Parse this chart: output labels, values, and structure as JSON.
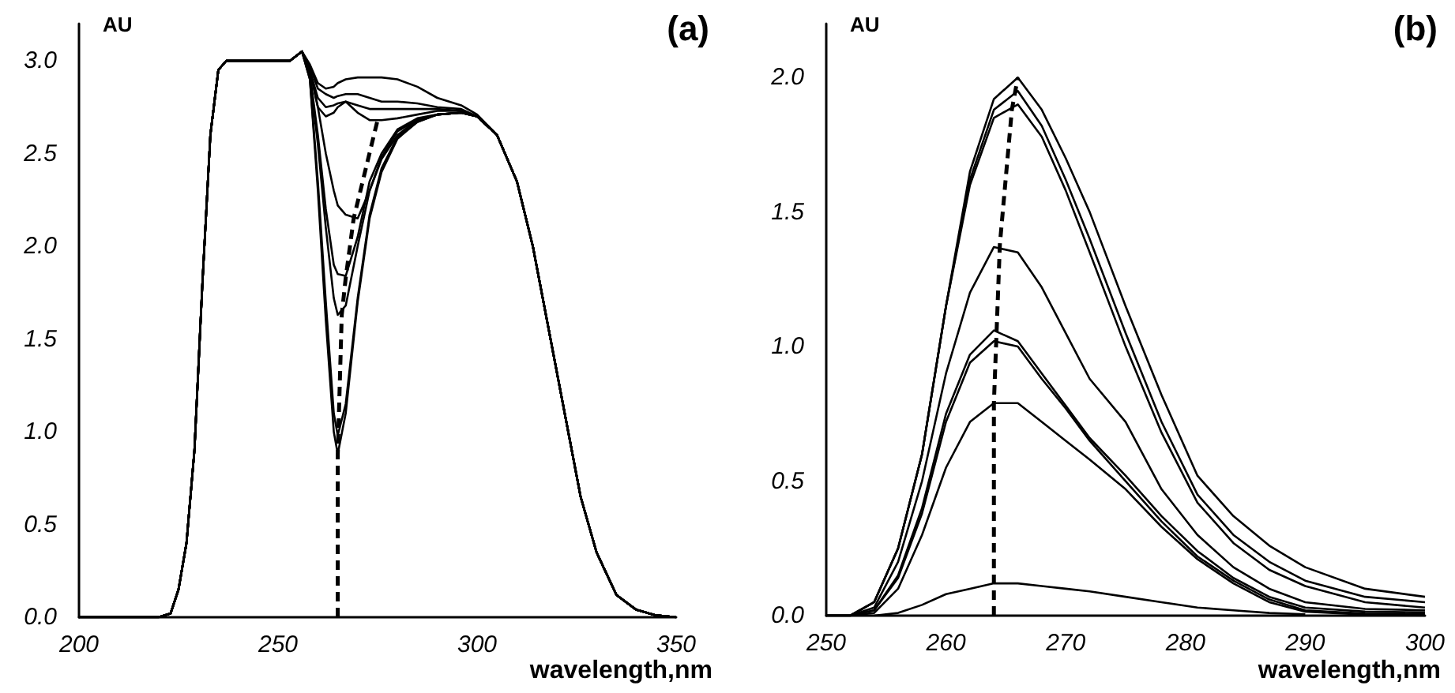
{
  "chart_data": [
    {
      "type": "line",
      "title": "(a)",
      "xlabel": "wavelength,nm",
      "ylabel": "AU",
      "xlim": [
        200,
        350
      ],
      "ylim": [
        0,
        3.2
      ],
      "xticks": [
        200,
        250,
        300,
        350
      ],
      "yticks": [
        {
          "value": 0,
          "label": "0.0"
        },
        0.5,
        {
          "value": 1,
          "label": "1.0"
        },
        1.5,
        {
          "value": 2,
          "label": "2.0"
        },
        2.5,
        {
          "value": 3,
          "label": "3.0"
        }
      ],
      "grid": false,
      "marker": "none",
      "line_style": "solid",
      "x": [
        200,
        215,
        220,
        223,
        225,
        227,
        229,
        231,
        233,
        235,
        237,
        240,
        253,
        256,
        258,
        260,
        262,
        264,
        265,
        267,
        270,
        273,
        276,
        280,
        285,
        290,
        296,
        300,
        305,
        310,
        314,
        318,
        322,
        326,
        330,
        335,
        340,
        345,
        350
      ],
      "series": [
        {
          "color": "#000000",
          "values": [
            0,
            0,
            0,
            0.02,
            0.15,
            0.4,
            0.9,
            1.8,
            2.6,
            2.95,
            3.0,
            3.0,
            3.0,
            3.05,
            2.9,
            2.3,
            1.6,
            1.0,
            0.88,
            1.1,
            1.7,
            2.15,
            2.4,
            2.58,
            2.67,
            2.71,
            2.72,
            2.7,
            2.6,
            2.35,
            2.0,
            1.55,
            1.1,
            0.65,
            0.35,
            0.12,
            0.04,
            0.01,
            0
          ]
        },
        {
          "color": "#000000",
          "values": [
            0,
            0,
            0,
            0.02,
            0.15,
            0.4,
            0.9,
            1.8,
            2.6,
            2.95,
            3.0,
            3.0,
            3.0,
            3.05,
            2.9,
            2.35,
            1.7,
            1.1,
            0.98,
            1.15,
            1.72,
            2.17,
            2.42,
            2.59,
            2.67,
            2.71,
            2.72,
            2.7,
            2.6,
            2.35,
            2.0,
            1.55,
            1.1,
            0.65,
            0.35,
            0.12,
            0.04,
            0.01,
            0
          ]
        },
        {
          "color": "#000000",
          "values": [
            0,
            0,
            0,
            0.02,
            0.15,
            0.4,
            0.9,
            1.8,
            2.6,
            2.95,
            3.0,
            3.0,
            3.0,
            3.05,
            2.92,
            2.55,
            2.1,
            1.72,
            1.63,
            1.68,
            2.0,
            2.3,
            2.48,
            2.62,
            2.68,
            2.71,
            2.72,
            2.7,
            2.6,
            2.35,
            2.0,
            1.55,
            1.1,
            0.65,
            0.35,
            0.12,
            0.04,
            0.01,
            0
          ]
        },
        {
          "color": "#000000",
          "values": [
            0,
            0,
            0,
            0.02,
            0.15,
            0.4,
            0.9,
            1.8,
            2.6,
            2.95,
            3.0,
            3.0,
            3.0,
            3.05,
            2.93,
            2.6,
            2.2,
            1.9,
            1.85,
            1.84,
            2.05,
            2.35,
            2.5,
            2.63,
            2.69,
            2.71,
            2.72,
            2.7,
            2.6,
            2.35,
            2.0,
            1.55,
            1.1,
            0.65,
            0.35,
            0.12,
            0.04,
            0.01,
            0
          ]
        },
        {
          "color": "#000000",
          "values": [
            0,
            0,
            0,
            0.02,
            0.15,
            0.4,
            0.9,
            1.8,
            2.6,
            2.95,
            3.0,
            3.0,
            3.0,
            3.05,
            2.95,
            2.75,
            2.5,
            2.3,
            2.22,
            2.17,
            2.15,
            2.3,
            2.47,
            2.6,
            2.68,
            2.71,
            2.72,
            2.7,
            2.6,
            2.35,
            2.0,
            1.55,
            1.1,
            0.65,
            0.35,
            0.12,
            0.04,
            0.01,
            0
          ]
        },
        {
          "color": "#000000",
          "values": [
            0,
            0,
            0,
            0.02,
            0.15,
            0.4,
            0.9,
            1.8,
            2.6,
            2.95,
            3.0,
            3.0,
            3.0,
            3.05,
            2.95,
            2.75,
            2.7,
            2.72,
            2.75,
            2.78,
            2.72,
            2.68,
            2.68,
            2.69,
            2.71,
            2.73,
            2.73,
            2.7,
            2.6,
            2.35,
            2.0,
            1.55,
            1.1,
            0.65,
            0.35,
            0.12,
            0.04,
            0.01,
            0
          ]
        },
        {
          "color": "#000000",
          "values": [
            0,
            0,
            0,
            0.02,
            0.15,
            0.4,
            0.9,
            1.8,
            2.6,
            2.95,
            3.0,
            3.0,
            3.0,
            3.05,
            2.95,
            2.8,
            2.75,
            2.76,
            2.77,
            2.78,
            2.76,
            2.74,
            2.74,
            2.74,
            2.74,
            2.74,
            2.73,
            2.7,
            2.6,
            2.35,
            2.0,
            1.55,
            1.1,
            0.65,
            0.35,
            0.12,
            0.04,
            0.01,
            0
          ]
        },
        {
          "color": "#000000",
          "values": [
            0,
            0,
            0,
            0.02,
            0.15,
            0.4,
            0.9,
            1.8,
            2.6,
            2.95,
            3.0,
            3.0,
            3.0,
            3.05,
            2.97,
            2.85,
            2.82,
            2.8,
            2.81,
            2.82,
            2.82,
            2.8,
            2.78,
            2.78,
            2.77,
            2.75,
            2.74,
            2.7,
            2.6,
            2.35,
            2.0,
            1.55,
            1.1,
            0.65,
            0.35,
            0.12,
            0.04,
            0.01,
            0
          ]
        },
        {
          "color": "#000000",
          "values": [
            0,
            0,
            0,
            0.02,
            0.15,
            0.4,
            0.9,
            1.8,
            2.6,
            2.95,
            3.0,
            3.0,
            3.0,
            3.05,
            2.98,
            2.88,
            2.85,
            2.86,
            2.88,
            2.9,
            2.91,
            2.91,
            2.91,
            2.9,
            2.86,
            2.8,
            2.76,
            2.71,
            2.6,
            2.35,
            2.0,
            1.55,
            1.1,
            0.65,
            0.35,
            0.12,
            0.04,
            0.01,
            0
          ]
        },
        {
          "color": "#000000",
          "line_style": "dashed",
          "x": [
            265,
            265,
            266,
            267,
            269,
            275
          ],
          "values": [
            0,
            0.88,
            1.63,
            1.83,
            2.15,
            2.68
          ]
        }
      ]
    },
    {
      "type": "line",
      "title": "(b)",
      "xlabel": "wavelength,nm",
      "ylabel": "AU",
      "xlim": [
        250,
        300
      ],
      "ylim": [
        0,
        2.2
      ],
      "xticks": [
        250,
        260,
        270,
        280,
        290,
        300
      ],
      "yticks": [
        {
          "value": 0,
          "label": "0.0"
        },
        0.5,
        {
          "value": 1,
          "label": "1.0"
        },
        1.5,
        {
          "value": 2,
          "label": "2.0"
        }
      ],
      "grid": false,
      "marker": "none",
      "line_style": "solid",
      "x": [
        250,
        252,
        254,
        256,
        258,
        260,
        262,
        264,
        266,
        268,
        270,
        272,
        275,
        278,
        281,
        284,
        287,
        290,
        295,
        300
      ],
      "series": [
        {
          "color": "#000000",
          "values": [
            0,
            0,
            0.05,
            0.25,
            0.6,
            1.15,
            1.65,
            1.92,
            2.0,
            1.88,
            1.7,
            1.5,
            1.15,
            0.82,
            0.52,
            0.37,
            0.26,
            0.18,
            0.1,
            0.07
          ]
        },
        {
          "color": "#000000",
          "values": [
            0,
            0,
            0.05,
            0.25,
            0.6,
            1.15,
            1.62,
            1.88,
            1.95,
            1.82,
            1.62,
            1.4,
            1.05,
            0.72,
            0.45,
            0.3,
            0.2,
            0.13,
            0.07,
            0.05
          ]
        },
        {
          "color": "#000000",
          "values": [
            0,
            0,
            0.05,
            0.25,
            0.6,
            1.15,
            1.6,
            1.85,
            1.9,
            1.78,
            1.58,
            1.35,
            1.0,
            0.68,
            0.42,
            0.27,
            0.17,
            0.11,
            0.05,
            0.03
          ]
        },
        {
          "color": "#000000",
          "values": [
            0,
            0,
            0.03,
            0.2,
            0.5,
            0.9,
            1.2,
            1.37,
            1.35,
            1.22,
            1.05,
            0.88,
            0.72,
            0.47,
            0.3,
            0.18,
            0.1,
            0.05,
            0.025,
            0.02
          ]
        },
        {
          "color": "#000000",
          "values": [
            0,
            0,
            0.02,
            0.15,
            0.4,
            0.75,
            0.97,
            1.06,
            1.02,
            0.9,
            0.78,
            0.66,
            0.52,
            0.37,
            0.24,
            0.14,
            0.07,
            0.03,
            0.015,
            0.012
          ]
        },
        {
          "color": "#000000",
          "values": [
            0,
            0,
            0.02,
            0.14,
            0.38,
            0.72,
            0.94,
            1.02,
            1.0,
            0.88,
            0.77,
            0.65,
            0.5,
            0.35,
            0.22,
            0.13,
            0.06,
            0.02,
            0.008,
            0.006
          ]
        },
        {
          "color": "#000000",
          "values": [
            0,
            0,
            0.01,
            0.1,
            0.3,
            0.55,
            0.72,
            0.79,
            0.79,
            0.72,
            0.65,
            0.58,
            0.47,
            0.33,
            0.21,
            0.12,
            0.05,
            0.015,
            0.004,
            0
          ]
        },
        {
          "color": "#000000",
          "x": [
            254,
            256,
            258,
            260,
            262,
            264,
            266,
            268,
            270,
            272,
            275,
            278,
            281,
            284,
            287,
            290
          ],
          "values": [
            0,
            0.01,
            0.04,
            0.08,
            0.1,
            0.12,
            0.12,
            0.11,
            0.1,
            0.09,
            0.07,
            0.05,
            0.03,
            0.02,
            0.01,
            0.005
          ]
        },
        {
          "color": "#000000",
          "line_style": "dashed",
          "x": [
            264,
            264,
            264.5,
            265.5,
            266
          ],
          "values": [
            0,
            0.79,
            1.38,
            1.88,
            2.0
          ]
        }
      ]
    }
  ]
}
